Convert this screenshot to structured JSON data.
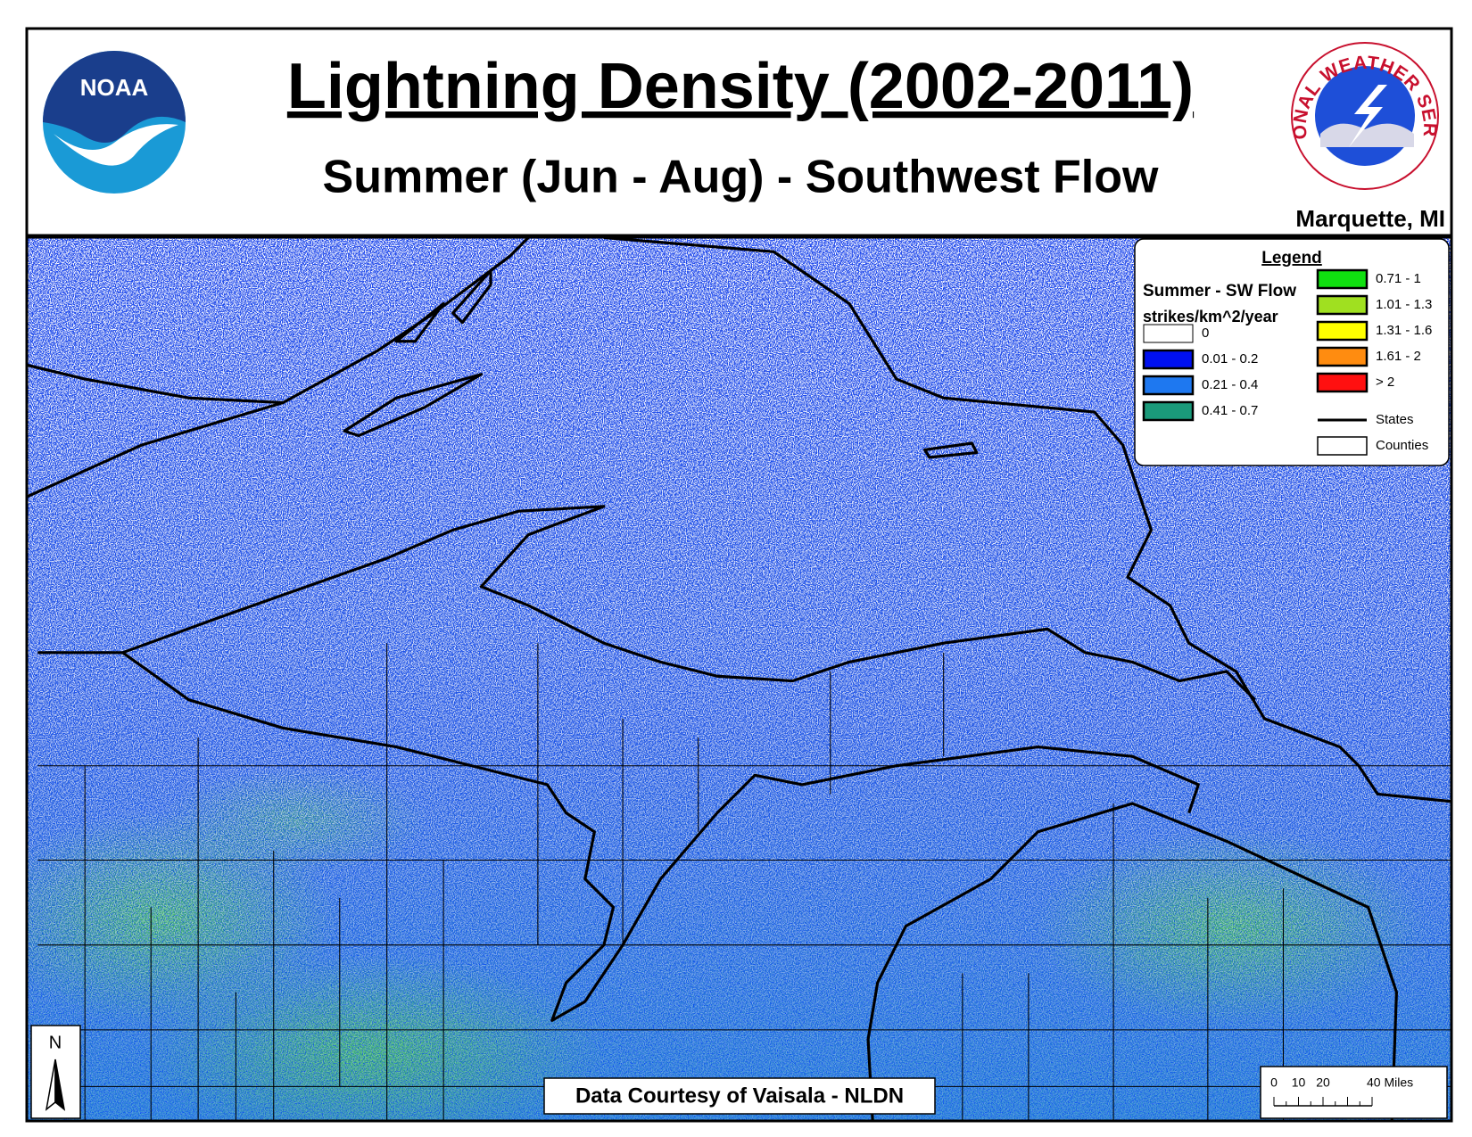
{
  "header": {
    "title": "Lightning Density (2002-2011)",
    "subtitle": "Summer (Jun - Aug) - Southwest Flow",
    "office": "Marquette, MI"
  },
  "logos": {
    "noaa": "NOAA",
    "nws": "NATIONAL WEATHER SERVICE"
  },
  "legend": {
    "title": "Legend",
    "subtitle": "Summer - SW Flow",
    "units": "strikes/km^2/year",
    "classes": [
      {
        "label": "0",
        "color": "#ffffff"
      },
      {
        "label": "0.01 - 0.2",
        "color": "#0010f0"
      },
      {
        "label": "0.21 - 0.4",
        "color": "#1e78f0"
      },
      {
        "label": "0.41 - 0.7",
        "color": "#1a9a7a"
      },
      {
        "label": "0.71 - 1",
        "color": "#10e010"
      },
      {
        "label": "1.01 - 1.3",
        "color": "#a0e020"
      },
      {
        "label": "1.31 - 1.6",
        "color": "#ffff00"
      },
      {
        "label": "1.61 - 2",
        "color": "#ff8c10"
      },
      {
        "label": "> 2",
        "color": "#ff1010"
      }
    ],
    "lines": [
      {
        "label": "States"
      },
      {
        "label": "Counties"
      }
    ]
  },
  "credit": "Data Courtesy of Vaisala - NLDN",
  "north_arrow": "N",
  "scale_bar": [
    "0",
    "10",
    "20",
    "40 Miles"
  ]
}
